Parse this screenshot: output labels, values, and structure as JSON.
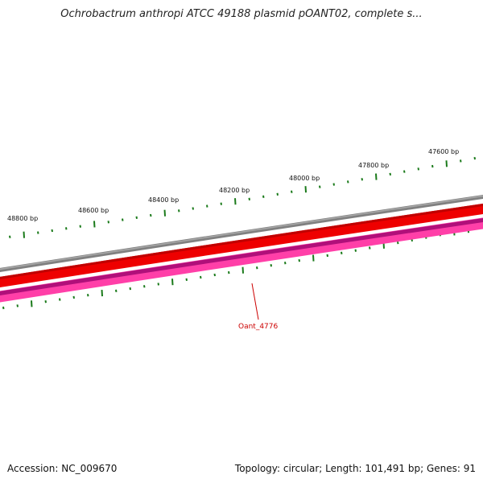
{
  "title": "Ochrobactrum anthropi ATCC 49188 plasmid pOANT02, complete s...",
  "footer": {
    "accession": "Accession: NC_009670",
    "summary": "Topology: circular; Length: 101,491 bp; Genes: 91"
  },
  "map": {
    "tick_labels": [
      "48800 bp",
      "48600 bp",
      "48400 bp",
      "48200 bp",
      "48000 bp",
      "47800 bp",
      "47600 bp"
    ],
    "gene_label": "Oant_4776",
    "colors": {
      "backbone": "#808080",
      "forward_strand": "#ee0000",
      "reverse_strand": "#ff3fa8",
      "reverse_strand_dark": "#b0107a",
      "ticks": "#1a7a1a",
      "gene_label": "#cc0000"
    }
  }
}
